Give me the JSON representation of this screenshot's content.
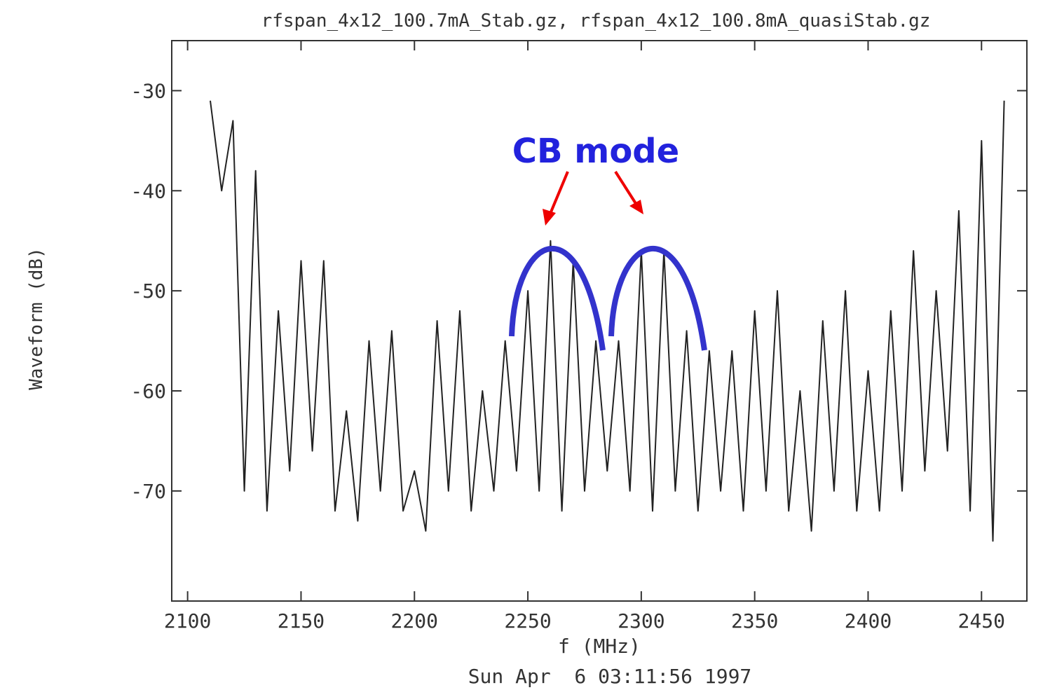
{
  "chart_data": {
    "type": "line",
    "title": "rfspan_4x12_100.7mA_Stab.gz, rfspan_4x12_100.8mA_quasiStab.gz",
    "xlabel": "f (MHz)",
    "ylabel": "Waveform (dB)",
    "footer": "Sun Apr  6 03:11:56 1997",
    "annotation": "CB mode",
    "xlim": [
      2093,
      2470
    ],
    "ylim": [
      -81,
      -25
    ],
    "xticks": [
      2100,
      2150,
      2200,
      2250,
      2300,
      2350,
      2400,
      2450
    ],
    "yticks": [
      -70,
      -60,
      -50,
      -40,
      -30
    ],
    "x": [
      2110,
      2115,
      2120,
      2125,
      2130,
      2135,
      2140,
      2145,
      2150,
      2155,
      2160,
      2165,
      2170,
      2175,
      2180,
      2185,
      2190,
      2195,
      2200,
      2205,
      2210,
      2215,
      2220,
      2225,
      2230,
      2235,
      2240,
      2245,
      2250,
      2255,
      2260,
      2265,
      2270,
      2275,
      2280,
      2285,
      2290,
      2295,
      2300,
      2305,
      2310,
      2315,
      2320,
      2325,
      2330,
      2335,
      2340,
      2345,
      2350,
      2355,
      2360,
      2365,
      2370,
      2375,
      2380,
      2385,
      2390,
      2395,
      2400,
      2405,
      2410,
      2415,
      2420,
      2425,
      2430,
      2435,
      2440,
      2445,
      2450,
      2455,
      2460
    ],
    "series": [
      {
        "color": "#222222",
        "values": [
          -31,
          -40,
          -33,
          -70,
          -38,
          -72,
          -52,
          -68,
          -47,
          -66,
          -47,
          -72,
          -62,
          -73,
          -55,
          -70,
          -54,
          -72,
          -68,
          -74,
          -53,
          -70,
          -52,
          -72,
          -60,
          -70,
          -55,
          -68,
          -50,
          -70,
          -45,
          -72,
          -47,
          -70,
          -55,
          -68,
          -55,
          -70,
          -46,
          -72,
          -46,
          -70,
          -54,
          -72,
          -56,
          -70,
          -56,
          -72,
          -52,
          -70,
          -50,
          -72,
          -60,
          -74,
          -53,
          -70,
          -50,
          -72,
          -58,
          -72,
          -52,
          -70,
          -46,
          -68,
          -50,
          -66,
          -42,
          -72,
          -35,
          -75,
          -31
        ]
      }
    ]
  }
}
